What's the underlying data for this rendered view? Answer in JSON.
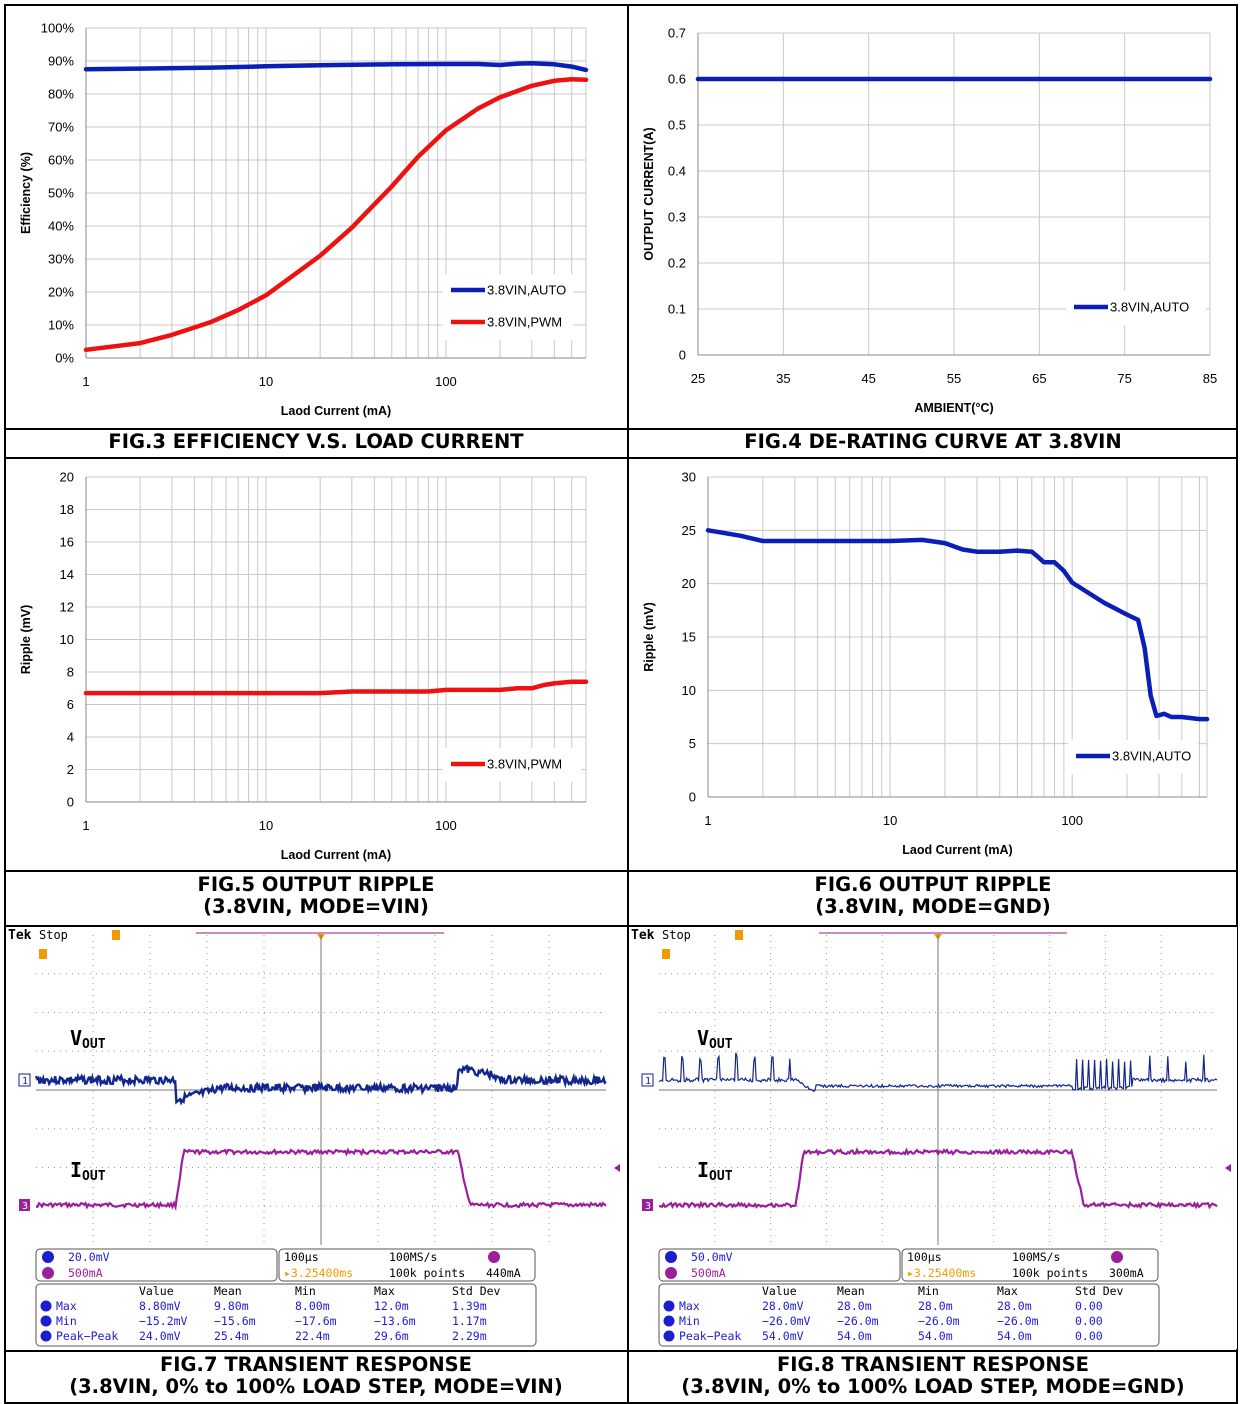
{
  "colors": {
    "auto": "#0a1fb8",
    "pwm": "#ee1111",
    "scope_ch1": "#12268e",
    "scope_ch3": "#9b1e9b",
    "readout": "#1d1dd0",
    "trigger": "#f29b00"
  },
  "captions": {
    "fig3": "FIG.3 EFFICIENCY V.S. LOAD CURRENT",
    "fig4": "FIG.4 DE-RATING CURVE AT 3.8VIN",
    "fig5_l1": "FIG.5 OUTPUT RIPPLE",
    "fig5_l2": "(3.8VIN, MODE=VIN)",
    "fig6_l1": "FIG.6 OUTPUT RIPPLE",
    "fig6_l2": "(3.8VIN, MODE=GND)",
    "fig7_l1": "FIG.7 TRANSIENT RESPONSE",
    "fig7_l2": "(3.8VIN, 0% to 100% LOAD STEP, MODE=VIN)",
    "fig8_l1": "FIG.8 TRANSIENT RESPONSE",
    "fig8_l2": "(3.8VIN, 0% to 100% LOAD STEP, MODE=GND)"
  },
  "chart_data": [
    {
      "id": "fig3",
      "type": "line",
      "xscale": "log",
      "xlim": [
        1,
        600
      ],
      "xticks": [
        "1",
        "10",
        "100"
      ],
      "ylim": [
        0,
        100
      ],
      "yticks": [
        "0%",
        "10%",
        "20%",
        "30%",
        "40%",
        "50%",
        "60%",
        "70%",
        "80%",
        "90%",
        "100%"
      ],
      "xlabel": "Laod Current (mA)",
      "ylabel": "Efficiency (%)",
      "grid": true,
      "legend": "bottom-right",
      "series": [
        {
          "name": "3.8VIN,AUTO",
          "color": "#0a1fb8",
          "x": [
            1,
            2,
            5,
            10,
            20,
            50,
            100,
            150,
            200,
            250,
            300,
            400,
            500,
            600
          ],
          "y": [
            87.5,
            87.7,
            88.0,
            88.4,
            88.7,
            89.0,
            89.1,
            89.1,
            88.8,
            89.2,
            89.3,
            89.0,
            88.3,
            87.3
          ]
        },
        {
          "name": "3.8VIN,PWM",
          "color": "#ee1111",
          "x": [
            1,
            2,
            3,
            5,
            7,
            10,
            15,
            20,
            30,
            50,
            70,
            100,
            150,
            200,
            300,
            400,
            500,
            600
          ],
          "y": [
            2.5,
            4.5,
            7.0,
            11.0,
            14.5,
            19.0,
            26.0,
            31.0,
            39.5,
            52.0,
            61.0,
            69.0,
            75.5,
            79.0,
            82.5,
            84.0,
            84.5,
            84.3
          ]
        }
      ]
    },
    {
      "id": "fig4",
      "type": "line",
      "xlim": [
        25,
        85
      ],
      "xticks": [
        "25",
        "35",
        "45",
        "55",
        "65",
        "75",
        "85"
      ],
      "ylim": [
        0,
        0.7
      ],
      "yticks": [
        "0",
        "0.1",
        "0.2",
        "0.3",
        "0.4",
        "0.5",
        "0.6",
        "0.7"
      ],
      "xlabel": "AMBIENT(°C)",
      "ylabel": "OUTPUT CURRENT(A)",
      "grid": true,
      "legend": "bottom-right",
      "series": [
        {
          "name": "3.8VIN,AUTO",
          "color": "#0a1fb8",
          "x": [
            25,
            85
          ],
          "y": [
            0.6,
            0.6
          ]
        }
      ]
    },
    {
      "id": "fig5",
      "type": "line",
      "xscale": "log",
      "xlim": [
        1,
        600
      ],
      "xticks": [
        "1",
        "10",
        "100"
      ],
      "ylim": [
        0,
        20
      ],
      "yticks": [
        "0",
        "2",
        "4",
        "6",
        "8",
        "10",
        "12",
        "14",
        "16",
        "18",
        "20"
      ],
      "xlabel": "Laod Current (mA)",
      "ylabel": "Ripple (mV)",
      "grid": true,
      "legend": "bottom-right",
      "series": [
        {
          "name": "3.8VIN,PWM",
          "color": "#ee1111",
          "x": [
            1,
            10,
            20,
            30,
            50,
            80,
            100,
            150,
            200,
            250,
            300,
            350,
            400,
            500,
            600
          ],
          "y": [
            6.7,
            6.7,
            6.7,
            6.8,
            6.8,
            6.8,
            6.9,
            6.9,
            6.9,
            7.0,
            7.0,
            7.2,
            7.3,
            7.4,
            7.4
          ]
        }
      ]
    },
    {
      "id": "fig6",
      "type": "line",
      "xscale": "log",
      "xlim": [
        1,
        550
      ],
      "xticks": [
        "1",
        "10",
        "100"
      ],
      "ylim": [
        0,
        30
      ],
      "yticks": [
        "0",
        "5",
        "10",
        "15",
        "20",
        "25",
        "30"
      ],
      "xlabel": "Laod Current (mA)",
      "ylabel": "Ripple (mV)",
      "grid": true,
      "legend": "bottom-right",
      "series": [
        {
          "name": "3.8VIN,AUTO",
          "color": "#0a1fb8",
          "x": [
            1,
            1.5,
            2,
            3,
            5,
            10,
            15,
            20,
            25,
            30,
            40,
            50,
            60,
            65,
            70,
            80,
            90,
            100,
            150,
            200,
            230,
            250,
            270,
            290,
            320,
            350,
            400,
            450,
            500,
            550
          ],
          "y": [
            25,
            24.5,
            24,
            24,
            24,
            24,
            24.1,
            23.8,
            23.2,
            23,
            23,
            23.1,
            23,
            22.5,
            22,
            22,
            21.2,
            20.1,
            18.2,
            17.1,
            16.6,
            14,
            9.5,
            7.6,
            7.8,
            7.5,
            7.5,
            7.4,
            7.3,
            7.3
          ]
        }
      ]
    }
  ],
  "scope7": {
    "brand": "Tek",
    "status": "Stop",
    "vout_label": "V",
    "vout_sub": "OUT",
    "iout_label": "I",
    "iout_sub": "OUT",
    "ch1_scale": "20.0mV",
    "ch3_scale": "500mA",
    "timebase": "100µs",
    "sample_rate": "100MS/s",
    "trigger_pos": "3.25400ms",
    "record": "100k points",
    "trigger_level": "440mA",
    "headers": [
      "Value",
      "Mean",
      "Min",
      "Max",
      "Std Dev"
    ],
    "rows": [
      {
        "name": "Max",
        "vals": [
          "8.80mV",
          "9.80m",
          "8.00m",
          "12.0m",
          "1.39m"
        ]
      },
      {
        "name": "Min",
        "vals": [
          "−15.2mV",
          "−15.6m",
          "−17.6m",
          "−13.6m",
          "1.17m"
        ]
      },
      {
        "name": "Peak−Peak",
        "vals": [
          "24.0mV",
          "25.4m",
          "22.4m",
          "29.6m",
          "2.29m"
        ]
      }
    ]
  },
  "scope8": {
    "brand": "Tek",
    "status": "Stop",
    "vout_label": "V",
    "vout_sub": "OUT",
    "iout_label": "I",
    "iout_sub": "OUT",
    "ch1_scale": "50.0mV",
    "ch3_scale": "500mA",
    "timebase": "100µs",
    "sample_rate": "100MS/s",
    "trigger_pos": "3.25400ms",
    "record": "100k points",
    "trigger_level": "300mA",
    "headers": [
      "Value",
      "Mean",
      "Min",
      "Max",
      "Std Dev"
    ],
    "rows": [
      {
        "name": "Max",
        "vals": [
          "28.0mV",
          "28.0m",
          "28.0m",
          "28.0m",
          "0.00"
        ]
      },
      {
        "name": "Min",
        "vals": [
          "−26.0mV",
          "−26.0m",
          "−26.0m",
          "−26.0m",
          "0.00"
        ]
      },
      {
        "name": "Peak−Peak",
        "vals": [
          "54.0mV",
          "54.0m",
          "54.0m",
          "54.0m",
          "0.00"
        ]
      }
    ]
  }
}
